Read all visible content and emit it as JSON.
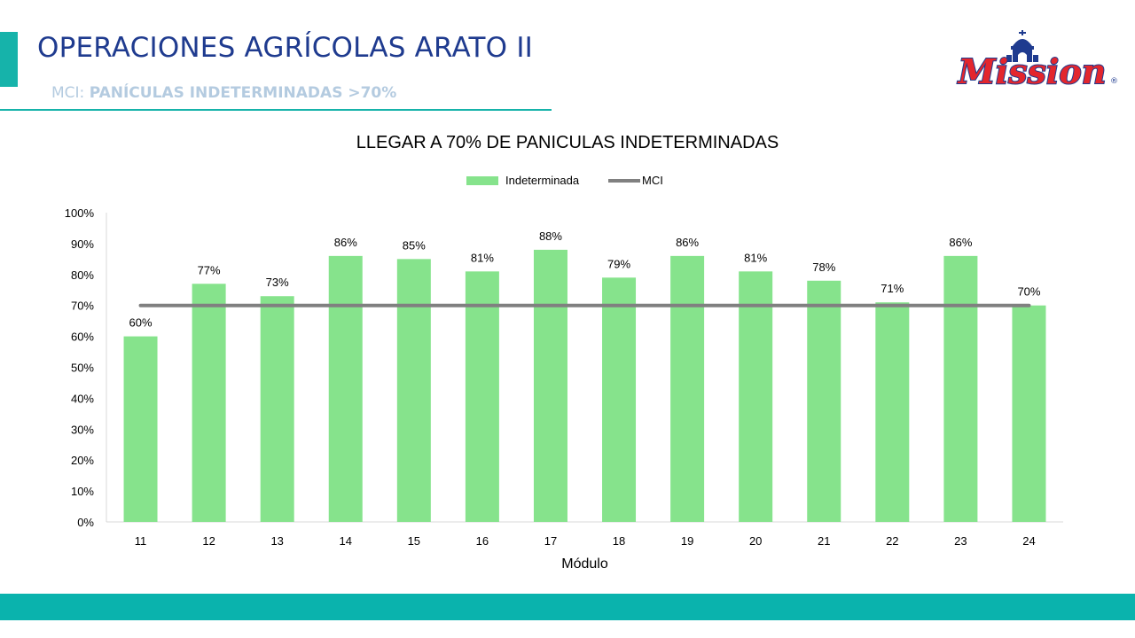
{
  "header": {
    "title": "OPERACIONES AGRÍCOLAS ARATO II",
    "subtitle_prefix": "MCI: ",
    "subtitle_bold": "PANÍCULAS INDETERMINADAS >70%"
  },
  "logo": {
    "text": "Mission",
    "registered": "®"
  },
  "colors": {
    "accent": "#16b3aa",
    "footer": "#0ab3ad",
    "title": "#1f3b8f",
    "bar": "#86e38c",
    "mci_line": "#808080"
  },
  "chart_data": {
    "type": "bar",
    "title": "LLEGAR A 70% DE PANICULAS INDETERMINADAS",
    "xlabel": "Módulo",
    "ylabel": "",
    "categories": [
      "11",
      "12",
      "13",
      "14",
      "15",
      "16",
      "17",
      "18",
      "19",
      "20",
      "21",
      "22",
      "23",
      "24"
    ],
    "series": [
      {
        "name": "Indeterminada",
        "type": "bar",
        "color": "#86e38c",
        "values": [
          60,
          77,
          73,
          86,
          85,
          81,
          88,
          79,
          86,
          81,
          78,
          71,
          86,
          70
        ],
        "labels": [
          "60%",
          "77%",
          "73%",
          "86%",
          "85%",
          "81%",
          "88%",
          "79%",
          "86%",
          "81%",
          "78%",
          "71%",
          "86%",
          "70%"
        ]
      },
      {
        "name": "MCI",
        "type": "line",
        "color": "#808080",
        "values": [
          70,
          70,
          70,
          70,
          70,
          70,
          70,
          70,
          70,
          70,
          70,
          70,
          70,
          70
        ]
      }
    ],
    "ylim": [
      0,
      100
    ],
    "yticks": [
      0,
      10,
      20,
      30,
      40,
      50,
      60,
      70,
      80,
      90,
      100
    ],
    "ytick_labels": [
      "0%",
      "10%",
      "20%",
      "30%",
      "40%",
      "50%",
      "60%",
      "70%",
      "80%",
      "90%",
      "100%"
    ],
    "grid": false,
    "legend_position": "top"
  }
}
